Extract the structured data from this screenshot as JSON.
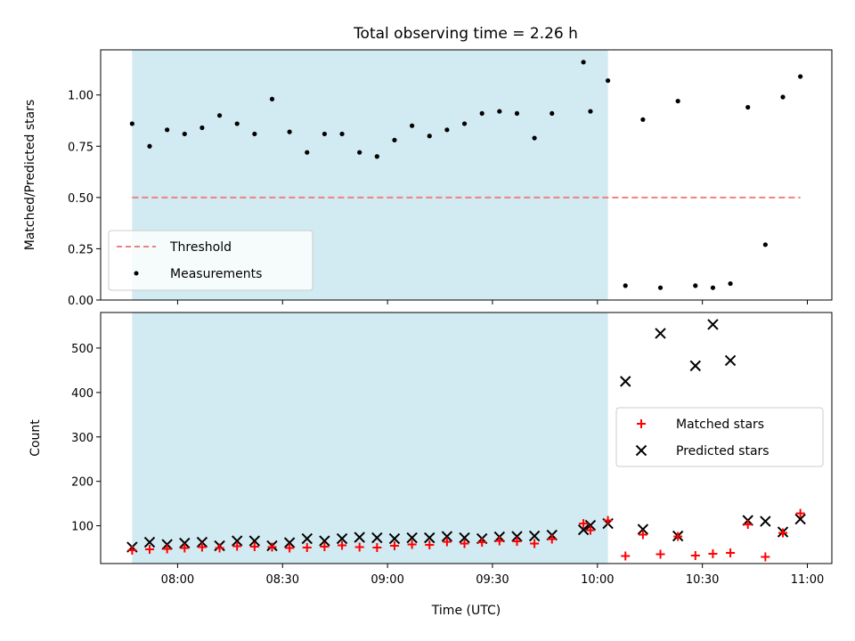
{
  "chart_data": [
    {
      "type": "scatter",
      "title": "Total observing time = 2.26 h",
      "xlabel": "",
      "ylabel": "Matched/Predicted stars",
      "xlim": [
        "07:38",
        "11:07"
      ],
      "ylim": [
        0.0,
        1.22
      ],
      "yticks": [
        "0.00",
        "0.25",
        "0.50",
        "0.75",
        "1.00"
      ],
      "shaded_span": [
        "07:47",
        "10:03"
      ],
      "shade_color": "#add8e6",
      "legend_position": "lower-left",
      "series": [
        {
          "name": "Threshold",
          "kind": "dashed-line",
          "color": "#f08080",
          "x": [
            "07:47",
            "10:58"
          ],
          "y": [
            0.5,
            0.5
          ]
        },
        {
          "name": "Measurements",
          "kind": "points",
          "color": "#000000",
          "x": [
            "07:47",
            "07:52",
            "07:57",
            "08:02",
            "08:07",
            "08:12",
            "08:17",
            "08:22",
            "08:27",
            "08:32",
            "08:37",
            "08:42",
            "08:47",
            "08:52",
            "08:57",
            "09:02",
            "09:07",
            "09:12",
            "09:17",
            "09:22",
            "09:27",
            "09:32",
            "09:37",
            "09:42",
            "09:47",
            "09:56",
            "09:58",
            "10:03",
            "10:08",
            "10:13",
            "10:18",
            "10:23",
            "10:28",
            "10:33",
            "10:38",
            "10:43",
            "10:48",
            "10:53",
            "10:58"
          ],
          "y": [
            0.86,
            0.75,
            0.83,
            0.81,
            0.84,
            0.9,
            0.86,
            0.81,
            0.98,
            0.82,
            0.72,
            0.81,
            0.81,
            0.72,
            0.7,
            0.78,
            0.85,
            0.8,
            0.83,
            0.86,
            0.91,
            0.92,
            0.91,
            0.79,
            0.91,
            1.16,
            0.92,
            1.07,
            0.07,
            0.88,
            0.06,
            0.97,
            0.07,
            0.06,
            0.08,
            0.94,
            0.27,
            0.99,
            1.09
          ]
        }
      ]
    },
    {
      "type": "scatter",
      "title": "",
      "xlabel": "Time (UTC)",
      "ylabel": "Count",
      "xlim": [
        "07:38",
        "11:07"
      ],
      "ylim": [
        15,
        580
      ],
      "yticks": [
        "100",
        "200",
        "300",
        "400",
        "500"
      ],
      "xticks": [
        "08:00",
        "08:30",
        "09:00",
        "09:30",
        "10:00",
        "10:30",
        "11:00"
      ],
      "shaded_span": [
        "07:47",
        "10:03"
      ],
      "shade_color": "#add8e6",
      "legend_position": "center-right",
      "series": [
        {
          "name": "Matched stars",
          "kind": "plus",
          "color": "#ff0000",
          "x": [
            "07:47",
            "07:52",
            "07:57",
            "08:02",
            "08:07",
            "08:12",
            "08:17",
            "08:22",
            "08:27",
            "08:32",
            "08:37",
            "08:42",
            "08:47",
            "08:52",
            "08:57",
            "09:02",
            "09:07",
            "09:12",
            "09:17",
            "09:22",
            "09:27",
            "09:32",
            "09:37",
            "09:42",
            "09:47",
            "09:56",
            "09:58",
            "10:03",
            "10:08",
            "10:13",
            "10:18",
            "10:23",
            "10:28",
            "10:33",
            "10:38",
            "10:43",
            "10:48",
            "10:53",
            "10:58"
          ],
          "y": [
            45,
            47,
            48,
            50,
            52,
            50,
            54,
            53,
            52,
            50,
            51,
            53,
            56,
            52,
            51,
            55,
            58,
            57,
            64,
            60,
            63,
            66,
            65,
            60,
            70,
            105,
            90,
            112,
            32,
            80,
            36,
            76,
            33,
            37,
            39,
            103,
            30,
            84,
            128
          ]
        },
        {
          "name": "Predicted stars",
          "kind": "x",
          "color": "#000000",
          "x": [
            "07:47",
            "07:52",
            "07:57",
            "08:02",
            "08:07",
            "08:12",
            "08:17",
            "08:22",
            "08:27",
            "08:32",
            "08:37",
            "08:42",
            "08:47",
            "08:52",
            "08:57",
            "09:02",
            "09:07",
            "09:12",
            "09:17",
            "09:22",
            "09:27",
            "09:32",
            "09:37",
            "09:42",
            "09:47",
            "09:56",
            "09:58",
            "10:03",
            "10:08",
            "10:13",
            "10:18",
            "10:23",
            "10:28",
            "10:33",
            "10:38",
            "10:43",
            "10:48",
            "10:53",
            "10:58"
          ],
          "y": [
            52,
            63,
            58,
            61,
            63,
            55,
            66,
            66,
            55,
            62,
            71,
            66,
            71,
            74,
            73,
            71,
            73,
            73,
            76,
            73,
            71,
            75,
            76,
            77,
            79,
            91,
            101,
            105,
            425,
            92,
            533,
            77,
            460,
            553,
            472,
            112,
            110,
            86,
            115
          ]
        }
      ]
    }
  ]
}
